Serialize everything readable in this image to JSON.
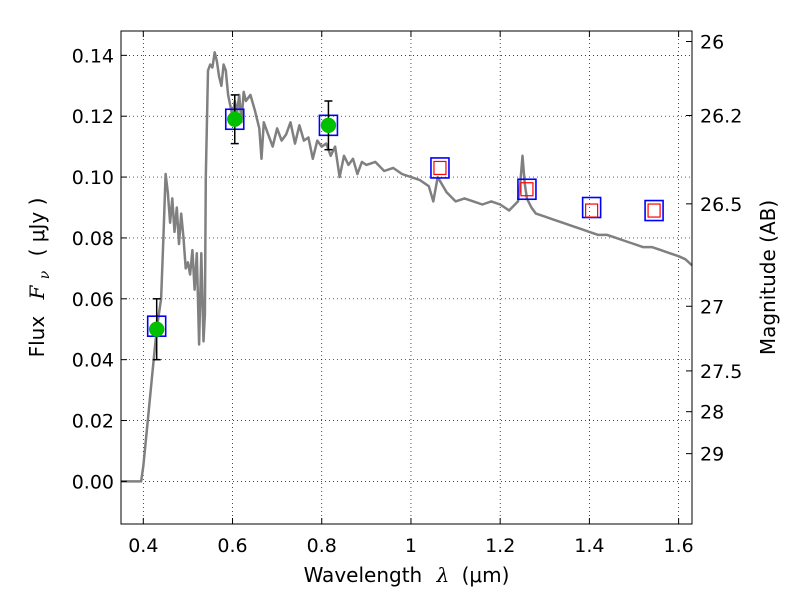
{
  "chart_data": {
    "type": "scatter",
    "xlabel": {
      "prefix": "Wavelength",
      "symbol": "λ",
      "unit": "(μm)"
    },
    "ylabel": {
      "prefix": "Flux",
      "symbol": "F",
      "subscript": "ν",
      "unit": "( μJy )"
    },
    "y2label": "Magnitude (AB)",
    "xlim": [
      0.35,
      1.63
    ],
    "ylim": [
      -0.014,
      0.148
    ],
    "grid": true,
    "x_ticks": [
      {
        "v": 0.4,
        "label": "0.4"
      },
      {
        "v": 0.6,
        "label": "0.6"
      },
      {
        "v": 0.8,
        "label": "0.8"
      },
      {
        "v": 1.0,
        "label": "1"
      },
      {
        "v": 1.2,
        "label": "1.2"
      },
      {
        "v": 1.4,
        "label": "1.4"
      },
      {
        "v": 1.6,
        "label": "1.6"
      }
    ],
    "y_ticks": [
      {
        "v": 0.0,
        "label": "0.00"
      },
      {
        "v": 0.02,
        "label": "0.02"
      },
      {
        "v": 0.04,
        "label": "0.04"
      },
      {
        "v": 0.06,
        "label": "0.06"
      },
      {
        "v": 0.08,
        "label": "0.08"
      },
      {
        "v": 0.1,
        "label": "0.10"
      },
      {
        "v": 0.12,
        "label": "0.12"
      },
      {
        "v": 0.14,
        "label": "0.14"
      }
    ],
    "mag_ticks": [
      {
        "mag": 26,
        "label": "26"
      },
      {
        "mag": 26.2,
        "label": "26.2"
      },
      {
        "mag": 26.5,
        "label": "26.5"
      },
      {
        "mag": 27,
        "label": "27"
      },
      {
        "mag": 27.5,
        "label": "27.5"
      },
      {
        "mag": 28,
        "label": "28"
      },
      {
        "mag": 29,
        "label": "29"
      }
    ],
    "model_spectrum": {
      "color": "#808080",
      "x": [
        0.35,
        0.395,
        0.4,
        0.41,
        0.42,
        0.43,
        0.44,
        0.445,
        0.45,
        0.455,
        0.46,
        0.465,
        0.47,
        0.475,
        0.48,
        0.485,
        0.49,
        0.495,
        0.5,
        0.505,
        0.51,
        0.515,
        0.52,
        0.525,
        0.53,
        0.535,
        0.538,
        0.54,
        0.545,
        0.55,
        0.555,
        0.56,
        0.565,
        0.57,
        0.575,
        0.58,
        0.585,
        0.59,
        0.6,
        0.605,
        0.61,
        0.615,
        0.62,
        0.625,
        0.63,
        0.64,
        0.65,
        0.66,
        0.665,
        0.67,
        0.68,
        0.69,
        0.7,
        0.71,
        0.72,
        0.73,
        0.74,
        0.75,
        0.76,
        0.77,
        0.78,
        0.79,
        0.8,
        0.81,
        0.82,
        0.83,
        0.84,
        0.85,
        0.86,
        0.87,
        0.88,
        0.89,
        0.9,
        0.92,
        0.94,
        0.96,
        0.98,
        1.0,
        1.02,
        1.04,
        1.05,
        1.06,
        1.08,
        1.1,
        1.12,
        1.14,
        1.16,
        1.18,
        1.2,
        1.22,
        1.24,
        1.245,
        1.25,
        1.255,
        1.26,
        1.27,
        1.28,
        1.3,
        1.32,
        1.34,
        1.36,
        1.38,
        1.4,
        1.42,
        1.44,
        1.46,
        1.48,
        1.5,
        1.52,
        1.54,
        1.56,
        1.58,
        1.6,
        1.615,
        1.63
      ],
      "y": [
        0.0,
        0.0,
        0.005,
        0.02,
        0.035,
        0.05,
        0.06,
        0.08,
        0.101,
        0.095,
        0.085,
        0.093,
        0.082,
        0.09,
        0.078,
        0.088,
        0.08,
        0.07,
        0.072,
        0.068,
        0.076,
        0.063,
        0.075,
        0.045,
        0.075,
        0.046,
        0.055,
        0.1,
        0.135,
        0.137,
        0.136,
        0.141,
        0.138,
        0.133,
        0.13,
        0.137,
        0.135,
        0.127,
        0.12,
        0.125,
        0.121,
        0.127,
        0.118,
        0.128,
        0.125,
        0.127,
        0.122,
        0.116,
        0.106,
        0.118,
        0.114,
        0.11,
        0.116,
        0.112,
        0.114,
        0.118,
        0.111,
        0.117,
        0.112,
        0.113,
        0.106,
        0.112,
        0.11,
        0.111,
        0.107,
        0.11,
        0.1,
        0.107,
        0.104,
        0.106,
        0.101,
        0.105,
        0.104,
        0.105,
        0.102,
        0.103,
        0.101,
        0.1,
        0.099,
        0.097,
        0.092,
        0.1,
        0.095,
        0.092,
        0.093,
        0.092,
        0.091,
        0.092,
        0.091,
        0.089,
        0.092,
        0.098,
        0.107,
        0.098,
        0.093,
        0.09,
        0.088,
        0.087,
        0.086,
        0.085,
        0.084,
        0.083,
        0.082,
        0.081,
        0.081,
        0.08,
        0.079,
        0.078,
        0.077,
        0.077,
        0.076,
        0.075,
        0.074,
        0.073,
        0.071
      ]
    },
    "photometry_points": [
      {
        "x": 0.43,
        "y": 0.05,
        "err": 0.01
      },
      {
        "x": 0.605,
        "y": 0.119,
        "err": 0.008
      },
      {
        "x": 0.815,
        "y": 0.117,
        "err": 0.008
      }
    ],
    "model_points": [
      {
        "x": 0.43,
        "y": 0.051
      },
      {
        "x": 0.605,
        "y": 0.119
      },
      {
        "x": 0.815,
        "y": 0.117
      },
      {
        "x": 1.065,
        "y": 0.103
      },
      {
        "x": 1.26,
        "y": 0.096
      },
      {
        "x": 1.405,
        "y": 0.09
      },
      {
        "x": 1.545,
        "y": 0.089
      }
    ],
    "predicted_points": [
      {
        "x": 1.065,
        "y": 0.103
      },
      {
        "x": 1.26,
        "y": 0.096
      },
      {
        "x": 1.405,
        "y": 0.089
      },
      {
        "x": 1.545,
        "y": 0.089
      }
    ],
    "colors": {
      "spectrum": "#808080",
      "photometry": "#00c000",
      "model_square": "#0000ff",
      "predicted_square": "#ff0000",
      "error_bar": "#000000"
    }
  }
}
